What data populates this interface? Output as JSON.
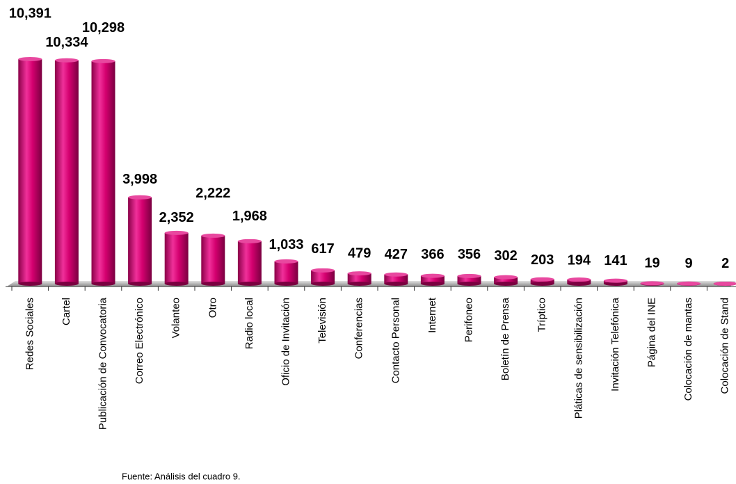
{
  "chart_data": {
    "type": "bar",
    "categories": [
      "Redes Sociales",
      "Cartel",
      "Publicación de Convocatoria",
      "Correo Electrónico",
      "Volanteo",
      "Otro",
      "Radio local",
      "Oficio de Invitación",
      "Televisión",
      "Conferencias",
      "Contacto Personal",
      "Internet",
      "Perifoneo",
      "Boletín de Prensa",
      "Tríptico",
      "Pláticas de sensibilización",
      "Invitación Telefónica",
      "Página del INE",
      "Colocación de mantas",
      "Colocación de Stand"
    ],
    "values": [
      10391,
      10334,
      10298,
      3998,
      2352,
      2222,
      1968,
      1033,
      617,
      479,
      427,
      366,
      356,
      302,
      203,
      194,
      141,
      19,
      9,
      2
    ],
    "value_labels": [
      "10,391",
      "10,334",
      "10,298",
      "3,998",
      "2,352",
      "2,222",
      "1,968",
      "1,033",
      "617",
      "479",
      "427",
      "366",
      "356",
      "302",
      "203",
      "194",
      "141",
      "19",
      "9",
      "2"
    ],
    "color": "#d4006f",
    "note": "Fuente:  Análisis del cuadro 9."
  }
}
